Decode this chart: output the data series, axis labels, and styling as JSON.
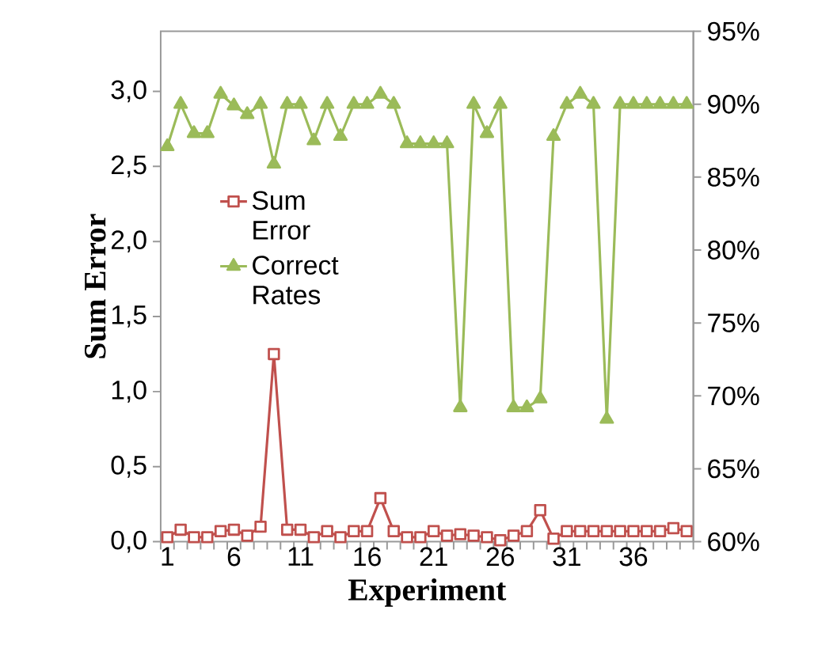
{
  "chart_data": {
    "type": "line",
    "xlabel": "Experiment",
    "ylabel": "Sum Error",
    "categories": [
      "1",
      null,
      null,
      null,
      null,
      "6",
      null,
      null,
      null,
      null,
      "11",
      null,
      null,
      null,
      null,
      "16",
      null,
      null,
      null,
      null,
      "21",
      null,
      null,
      null,
      null,
      "26",
      null,
      null,
      null,
      null,
      "31",
      null,
      null,
      null,
      null,
      "36",
      null,
      null,
      null,
      null
    ],
    "series": [
      {
        "name": "Sum Error",
        "color": "#c0504d",
        "marker": "square",
        "values": [
          0.03,
          0.08,
          0.03,
          0.03,
          0.07,
          0.08,
          0.04,
          0.1,
          1.25,
          0.08,
          0.08,
          0.03,
          0.07,
          0.03,
          0.07,
          0.07,
          0.29,
          0.07,
          0.03,
          0.03,
          0.07,
          0.04,
          0.05,
          0.04,
          0.03,
          0.01,
          0.04,
          0.07,
          0.21,
          0.02,
          0.07,
          0.07,
          0.07,
          0.07,
          0.07,
          0.07,
          0.07,
          0.07,
          0.09,
          0.07
        ]
      },
      {
        "name": "Correct Rates",
        "color": "#9bbb59",
        "marker": "triangle",
        "axis": "y2",
        "values": [
          87.1,
          90.0,
          88.0,
          88.0,
          90.7,
          89.9,
          89.3,
          90.0,
          85.9,
          90.0,
          90.0,
          87.5,
          90.0,
          87.8,
          90.0,
          90.0,
          90.7,
          90.0,
          87.3,
          87.3,
          87.3,
          87.3,
          69.2,
          90.0,
          88.0,
          90.0,
          69.2,
          69.2,
          69.8,
          87.8,
          90.0,
          90.7,
          90.0,
          68.4,
          90.0,
          90.0,
          90.0,
          90.0,
          90.0,
          90.0
        ]
      }
    ],
    "ylim": [
      0,
      3.4
    ],
    "yticks": [
      {
        "value": 0,
        "label": "0,0"
      },
      {
        "value": 0.5,
        "label": "0,5"
      },
      {
        "value": 1,
        "label": "1,0"
      },
      {
        "value": 1.5,
        "label": "1,5"
      },
      {
        "value": 2,
        "label": "2,0"
      },
      {
        "value": 2.5,
        "label": "2,5"
      },
      {
        "value": 3,
        "label": "3,0"
      }
    ],
    "y2lim": [
      60,
      95
    ],
    "y2ticks": [
      {
        "value": 60,
        "label": "60%"
      },
      {
        "value": 65,
        "label": "65%"
      },
      {
        "value": 70,
        "label": "70%"
      },
      {
        "value": 75,
        "label": "75%"
      },
      {
        "value": 80,
        "label": "80%"
      },
      {
        "value": 85,
        "label": "85%"
      },
      {
        "value": 90,
        "label": "90%"
      },
      {
        "value": 95,
        "label": "95%"
      }
    ],
    "legend": "left"
  }
}
